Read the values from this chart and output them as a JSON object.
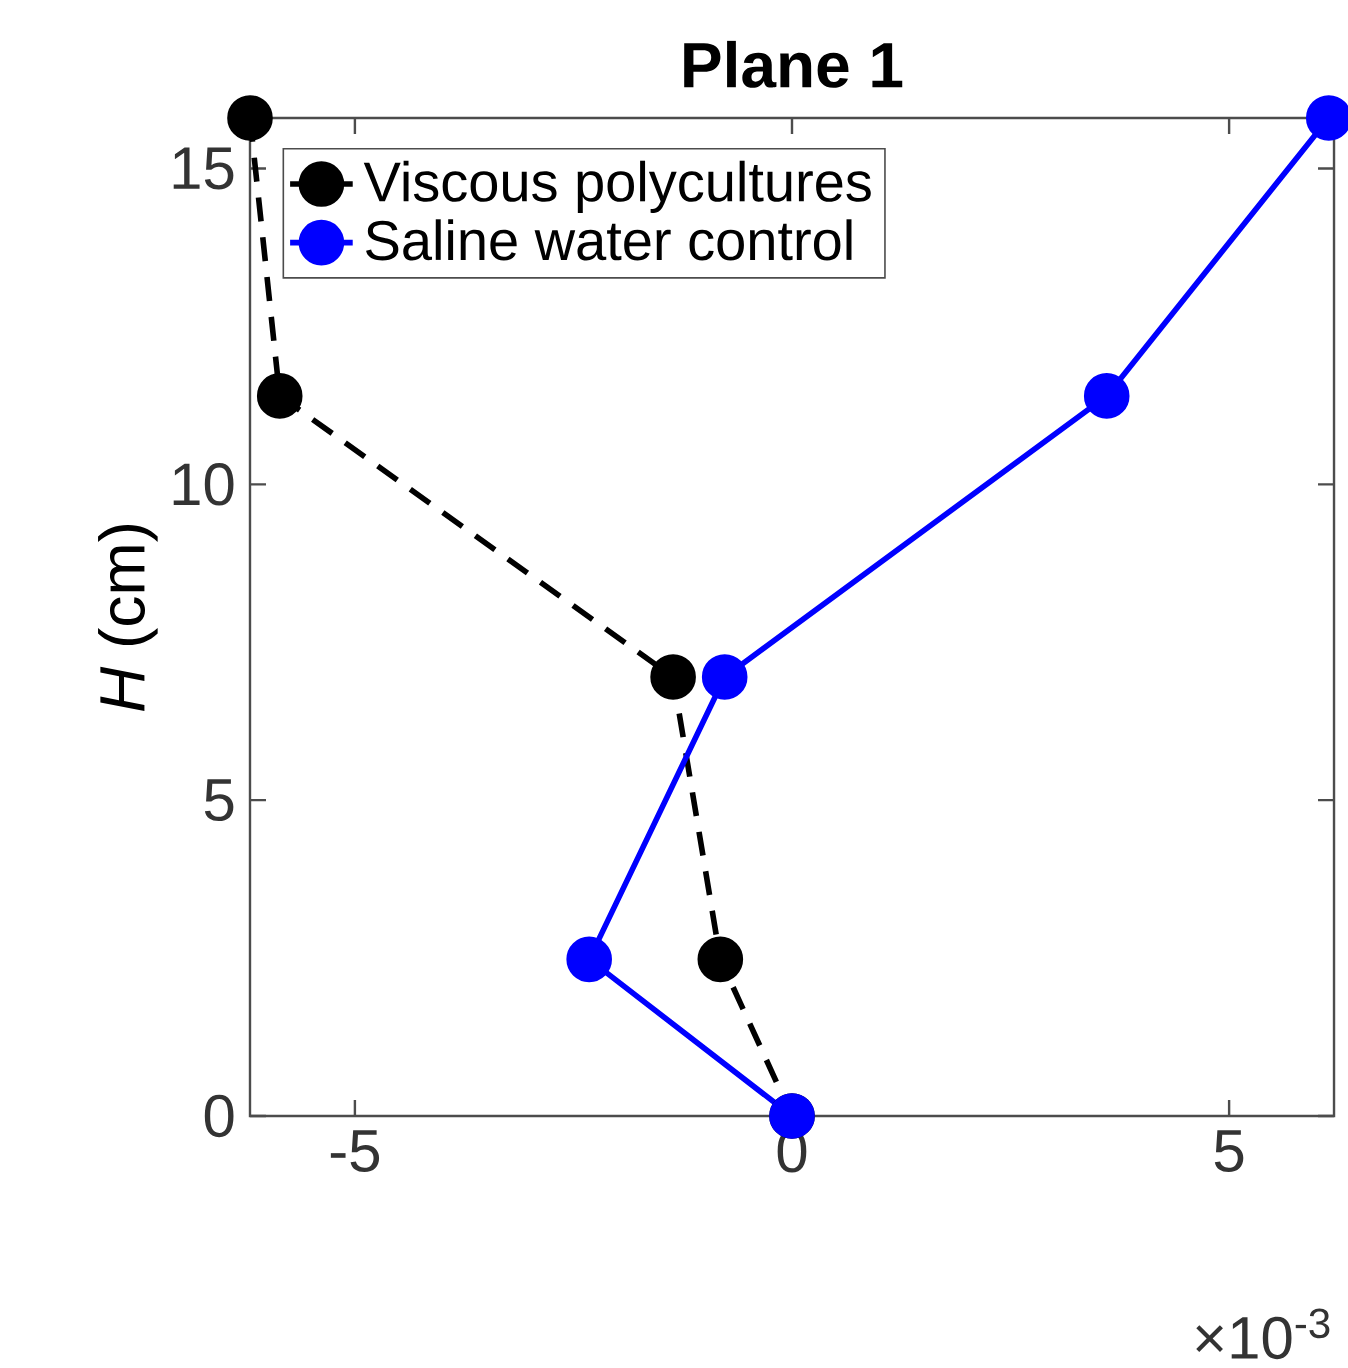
{
  "chart_data": {
    "type": "line",
    "title": "Plane 1",
    "ylabel": "*H* (cm)",
    "annotations": [
      "×10$^{-3}$"
    ],
    "xlim": [
      -6.2,
      6.2
    ],
    "xticks": [
      -5,
      0,
      5
    ],
    "ylim": [
      0,
      15.8
    ],
    "yticks": [
      0,
      5,
      10,
      15
    ],
    "marker": "circle",
    "legend": "top left",
    "grid": false,
    "series": [
      {
        "name": "Viscous polycultures",
        "color": "#000000",
        "line_style": "dashed",
        "x": [
          -6.2,
          -5.86,
          -1.36,
          -0.82,
          0
        ],
        "values": [
          15.8,
          11.4,
          6.95,
          2.48,
          0
        ]
      },
      {
        "name": "Saline water control",
        "color": "#0000ff",
        "line_style": "solid",
        "x": [
          0,
          -2.32,
          -0.77,
          3.6,
          6.14
        ],
        "values": [
          0,
          2.48,
          6.95,
          11.4,
          15.8
        ]
      }
    ]
  }
}
